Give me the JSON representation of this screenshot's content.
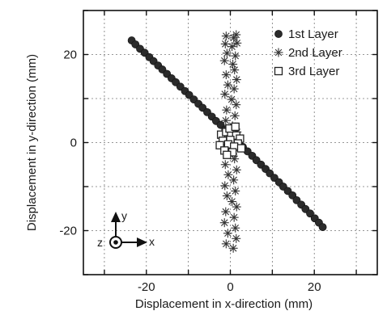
{
  "chart_data": {
    "type": "scatter",
    "xlabel": "Displacement in x-direction  (mm)",
    "ylabel": "Displacement in y-direction  (mm)",
    "xlim": [
      -35,
      35
    ],
    "ylim": [
      -30,
      30
    ],
    "xticks": [
      -20,
      0,
      20
    ],
    "yticks": [
      -20,
      0,
      20
    ],
    "xtick_labels": [
      "-20",
      "0",
      "20"
    ],
    "ytick_labels": [
      "-20",
      "0",
      "20"
    ],
    "grid": true,
    "legend_position": "top-right",
    "series": [
      {
        "name": "1st Layer",
        "marker": "circle",
        "color": "#2b2b2b",
        "x": [
          -23.5,
          -22.6,
          -21.5,
          -20.4,
          -19.3,
          -18.3,
          -17.2,
          -16.2,
          -15.1,
          -14.0,
          -13.0,
          -11.9,
          -10.8,
          -9.8,
          -8.7,
          -7.6,
          -6.6,
          -5.5,
          -4.4,
          -3.4,
          -2.3,
          -1.2,
          -0.2,
          0.9,
          2.0,
          3.0,
          4.1,
          5.2,
          6.2,
          7.3,
          8.4,
          9.4,
          10.5,
          11.6,
          12.6,
          13.7,
          14.8,
          15.8,
          16.9,
          17.9,
          19.0,
          20.1,
          21.1,
          22.0
        ],
        "y": [
          23.2,
          22.3,
          21.3,
          20.4,
          19.4,
          18.5,
          17.5,
          16.6,
          15.6,
          14.6,
          13.7,
          12.7,
          11.7,
          10.8,
          9.8,
          8.8,
          7.9,
          6.9,
          5.9,
          4.9,
          4.0,
          3.0,
          2.0,
          1.0,
          0.0,
          -1.0,
          -2.0,
          -3.0,
          -4.0,
          -5.0,
          -6.0,
          -7.0,
          -8.0,
          -9.0,
          -10.0,
          -11.0,
          -12.0,
          -13.1,
          -14.1,
          -15.1,
          -16.1,
          -17.2,
          -18.2,
          -19.2
        ]
      },
      {
        "name": "2nd Layer",
        "marker": "asterisk",
        "color": "#333333",
        "x": [
          -1.0,
          0.8,
          1.4,
          -1.2,
          0.4,
          1.6,
          -0.8,
          1.2,
          -1.4,
          0.6,
          1.0,
          -1.0,
          1.5,
          -0.6,
          0.9,
          -1.3,
          0.3,
          1.4,
          -0.9,
          1.1,
          -1.1,
          0.5,
          1.6,
          -0.7,
          1.3,
          -1.4,
          0.6,
          1.0,
          -1.2,
          1.5,
          -0.5,
          0.8,
          -1.3,
          1.2,
          -0.8,
          0.4,
          1.5,
          -1.1,
          0.9,
          -1.4,
          1.2,
          -0.6,
          1.4,
          -1.0,
          0.7
        ],
        "y": [
          24.2,
          23.8,
          24.5,
          22.4,
          21.8,
          22.6,
          20.3,
          19.7,
          18.6,
          17.8,
          16.5,
          15.4,
          14.3,
          13.1,
          12.2,
          11.0,
          9.8,
          8.6,
          7.4,
          6.1,
          5.0,
          3.8,
          2.4,
          1.2,
          0.1,
          -1.3,
          -2.6,
          -3.7,
          -5.0,
          -6.2,
          -7.3,
          -8.5,
          -9.8,
          -11.0,
          -12.1,
          -13.4,
          -14.6,
          -15.7,
          -17.0,
          -18.2,
          -19.4,
          -20.6,
          -21.8,
          -23.0,
          -24.0
        ]
      },
      {
        "name": "3rd Layer",
        "marker": "square",
        "color": "#222222",
        "x": [
          -2.2,
          -1.0,
          0.2,
          1.4,
          2.3,
          -1.8,
          0.0,
          1.8,
          -2.5,
          -0.5,
          0.9,
          2.6,
          -1.4,
          0.5,
          -0.2,
          1.2,
          -0.8
        ],
        "y": [
          1.8,
          2.4,
          2.1,
          1.6,
          0.9,
          0.4,
          0.6,
          -0.2,
          -0.6,
          -0.4,
          -0.9,
          -1.3,
          -1.8,
          -2.2,
          3.2,
          3.6,
          -2.8
        ]
      }
    ],
    "coordinate_indicator": {
      "z_label": "z",
      "y_label": "y",
      "x_label": "x"
    }
  }
}
